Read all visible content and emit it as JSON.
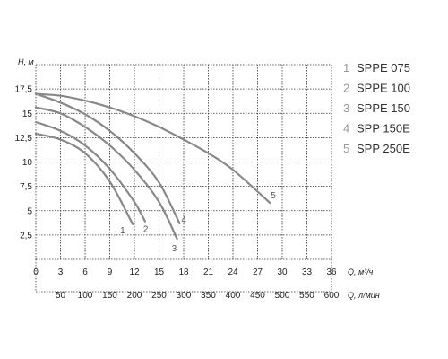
{
  "chart_data": {
    "type": "line",
    "ylabel": "H, м",
    "xlabel": "Q, м³/ч",
    "x2label": "Q, л/мин",
    "xlim": [
      0,
      36
    ],
    "ylim": [
      0,
      20
    ],
    "x_ticks": [
      "0",
      "3",
      "6",
      "9",
      "12",
      "15",
      "18",
      "21",
      "24",
      "27",
      "30",
      "33",
      "36"
    ],
    "x2_ticks": [
      "50",
      "100",
      "150",
      "200",
      "250",
      "300",
      "350",
      "400",
      "450",
      "500",
      "550",
      "600"
    ],
    "y_ticks": [
      "2,5",
      "5",
      "7,5",
      "10",
      "12,5",
      "15",
      "17,5"
    ],
    "y_tick_values": [
      2.5,
      5,
      7.5,
      10,
      12.5,
      15,
      17.5
    ],
    "grid": true,
    "legend_position": "right",
    "curve_color": "#888888",
    "series": [
      {
        "id": "1",
        "name": "SPPE 075",
        "points": [
          [
            0,
            12.9
          ],
          [
            3,
            12.3
          ],
          [
            6,
            10.9
          ],
          [
            9,
            8.0
          ],
          [
            11.8,
            3.6
          ]
        ]
      },
      {
        "id": "2",
        "name": "SPPE 100",
        "points": [
          [
            0,
            14.1
          ],
          [
            3,
            13.2
          ],
          [
            6,
            11.7
          ],
          [
            9,
            9.3
          ],
          [
            12,
            5.9
          ],
          [
            13.3,
            3.9
          ]
        ]
      },
      {
        "id": "3",
        "name": "SPPE 150",
        "points": [
          [
            0,
            15.6
          ],
          [
            3,
            15.0
          ],
          [
            6,
            13.6
          ],
          [
            9,
            11.7
          ],
          [
            12,
            9.2
          ],
          [
            15,
            5.9
          ],
          [
            17.2,
            2.1
          ]
        ]
      },
      {
        "id": "4",
        "name": "SPP 150E",
        "points": [
          [
            0,
            17.0
          ],
          [
            3,
            16.1
          ],
          [
            6,
            14.9
          ],
          [
            9,
            13.2
          ],
          [
            12,
            10.9
          ],
          [
            15,
            7.9
          ],
          [
            17.5,
            3.7
          ]
        ]
      },
      {
        "id": "5",
        "name": "SPP 250E",
        "points": [
          [
            0,
            17.0
          ],
          [
            3,
            16.8
          ],
          [
            6,
            16.3
          ],
          [
            9,
            15.6
          ],
          [
            12,
            14.7
          ],
          [
            15,
            13.6
          ],
          [
            18,
            12.3
          ],
          [
            21,
            10.9
          ],
          [
            24,
            9.2
          ],
          [
            28.5,
            5.8
          ]
        ]
      }
    ]
  }
}
